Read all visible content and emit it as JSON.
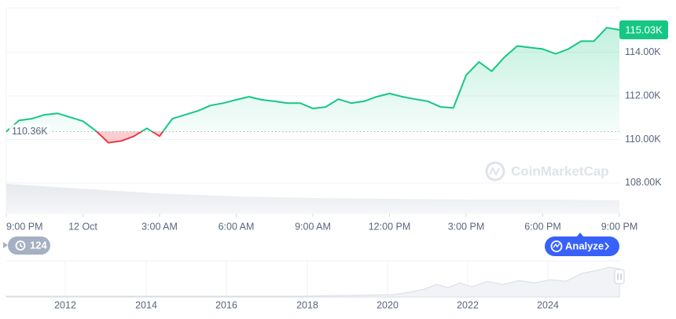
{
  "chart_data": {
    "type": "line",
    "x": [
      0,
      0.5,
      1,
      1.5,
      2,
      2.5,
      3,
      3.5,
      4,
      4.5,
      5,
      5.5,
      6,
      6.5,
      7,
      7.5,
      8,
      8.5,
      9,
      9.5,
      10,
      10.5,
      11,
      11.5,
      12,
      12.5,
      13,
      13.5,
      14,
      14.5,
      15,
      15.5,
      16,
      16.5,
      17,
      17.5,
      18,
      18.5,
      19,
      19.5,
      20,
      20.5,
      21,
      21.5,
      22,
      22.5,
      23,
      23.5,
      24
    ],
    "series": [
      {
        "name": "Price",
        "color": "#16c784",
        "values": [
          110360,
          110870,
          110950,
          111130,
          111200,
          111020,
          110840,
          110400,
          109850,
          109930,
          110150,
          110510,
          110150,
          110950,
          111130,
          111310,
          111560,
          111670,
          111820,
          111960,
          111820,
          111750,
          111670,
          111670,
          111420,
          111490,
          111850,
          111670,
          111750,
          111960,
          112110,
          111960,
          111850,
          111750,
          111490,
          111450,
          112950,
          113560,
          113130,
          113780,
          114290,
          114220,
          114150,
          113930,
          114150,
          114510,
          114510,
          115130,
          115030
        ]
      }
    ],
    "below_color": "#ea3943",
    "xlim": [
      0,
      24
    ],
    "xticks": [
      {
        "value": 0,
        "label": "9:00 PM"
      },
      {
        "value": 3,
        "label": "12 Oct"
      },
      {
        "value": 6,
        "label": "3:00 AM"
      },
      {
        "value": 9,
        "label": "6:00 AM"
      },
      {
        "value": 12,
        "label": "9:00 AM"
      },
      {
        "value": 15,
        "label": "12:00 PM"
      },
      {
        "value": 18,
        "label": "3:00 PM"
      },
      {
        "value": 21,
        "label": "6:00 PM"
      },
      {
        "value": 24,
        "label": "9:00 PM"
      }
    ],
    "ylim": [
      106590,
      116040
    ],
    "yticks": [
      {
        "value": 108000,
        "label": "108.00K"
      },
      {
        "value": 110000,
        "label": "110.00K"
      },
      {
        "value": 112000,
        "label": "112.00K"
      },
      {
        "value": 114000,
        "label": "114.00K"
      }
    ],
    "grid": true,
    "reference_line": {
      "value": 110360,
      "label": "110.36K"
    },
    "last_price": {
      "value": 115030,
      "label": "115.03K"
    },
    "watermark": "CoinMarketCap"
  },
  "navigator": {
    "labels": [
      "2012",
      "2014",
      "2016",
      "2018",
      "2020",
      "2022",
      "2024"
    ]
  },
  "ui": {
    "history_badge": "124",
    "analyze_button": "Analyze"
  }
}
